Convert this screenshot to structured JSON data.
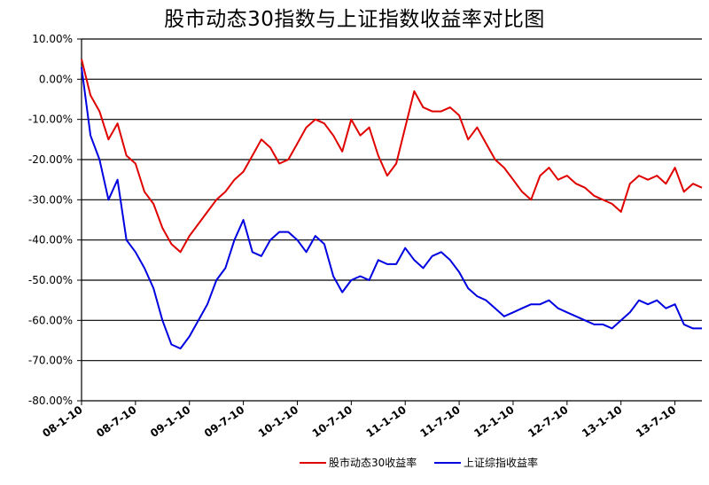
{
  "chart_data": {
    "type": "line",
    "title": "股市动态30指数与上证指数收益率对比图",
    "ylim": [
      -0.8,
      0.1
    ],
    "y_ticks": [
      "10.00%",
      "0.00%",
      "-10.00%",
      "-20.00%",
      "-30.00%",
      "-40.00%",
      "-50.00%",
      "-60.00%",
      "-70.00%",
      "-80.00%"
    ],
    "x_ticks": [
      "08-1-10",
      "08-7-10",
      "09-1-10",
      "09-7-10",
      "10-1-10",
      "10-7-10",
      "11-1-10",
      "11-7-10",
      "12-1-10",
      "12-7-10",
      "13-1-10",
      "13-7-10"
    ],
    "xlim": [
      "08-1-10",
      "13-10-10"
    ],
    "grid": true,
    "legend_position": "bottom",
    "series": [
      {
        "name": "股市动态30收益率",
        "color": "#e00000",
        "x": [
          "08-1-10",
          "08-2-10",
          "08-3-10",
          "08-4-10",
          "08-5-10",
          "08-6-10",
          "08-7-10",
          "08-8-10",
          "08-9-10",
          "08-10-10",
          "08-11-10",
          "08-12-10",
          "09-1-10",
          "09-2-10",
          "09-3-10",
          "09-4-10",
          "09-5-10",
          "09-6-10",
          "09-7-10",
          "09-8-10",
          "09-9-10",
          "09-10-10",
          "09-11-10",
          "09-12-10",
          "10-1-10",
          "10-2-10",
          "10-3-10",
          "10-4-10",
          "10-5-10",
          "10-6-10",
          "10-7-10",
          "10-8-10",
          "10-9-10",
          "10-10-10",
          "10-11-10",
          "10-12-10",
          "11-1-10",
          "11-2-10",
          "11-3-10",
          "11-4-10",
          "11-5-10",
          "11-6-10",
          "11-7-10",
          "11-8-10",
          "11-9-10",
          "11-10-10",
          "11-11-10",
          "11-12-10",
          "12-1-10",
          "12-2-10",
          "12-3-10",
          "12-4-10",
          "12-5-10",
          "12-6-10",
          "12-7-10",
          "12-8-10",
          "12-9-10",
          "12-10-10",
          "12-11-10",
          "12-12-10",
          "13-1-10",
          "13-2-10",
          "13-3-10",
          "13-4-10",
          "13-5-10",
          "13-6-10",
          "13-7-10",
          "13-8-10",
          "13-9-10",
          "13-10-10"
        ],
        "values": [
          0.05,
          -0.04,
          -0.08,
          -0.15,
          -0.11,
          -0.19,
          -0.21,
          -0.28,
          -0.31,
          -0.37,
          -0.41,
          -0.43,
          -0.39,
          -0.36,
          -0.33,
          -0.3,
          -0.28,
          -0.25,
          -0.23,
          -0.19,
          -0.15,
          -0.17,
          -0.21,
          -0.2,
          -0.16,
          -0.12,
          -0.1,
          -0.11,
          -0.14,
          -0.18,
          -0.1,
          -0.14,
          -0.12,
          -0.19,
          -0.24,
          -0.21,
          -0.12,
          -0.03,
          -0.07,
          -0.08,
          -0.08,
          -0.07,
          -0.09,
          -0.15,
          -0.12,
          -0.16,
          -0.2,
          -0.22,
          -0.25,
          -0.28,
          -0.3,
          -0.24,
          -0.22,
          -0.25,
          -0.24,
          -0.26,
          -0.27,
          -0.29,
          -0.3,
          -0.31,
          -0.33,
          -0.26,
          -0.24,
          -0.25,
          -0.24,
          -0.26,
          -0.22,
          -0.28,
          -0.26,
          -0.27
        ]
      },
      {
        "name": "上证综指收益率",
        "color": "#0000e0",
        "x": [
          "08-1-10",
          "08-2-10",
          "08-3-10",
          "08-4-10",
          "08-5-10",
          "08-6-10",
          "08-7-10",
          "08-8-10",
          "08-9-10",
          "08-10-10",
          "08-11-10",
          "08-12-10",
          "09-1-10",
          "09-2-10",
          "09-3-10",
          "09-4-10",
          "09-5-10",
          "09-6-10",
          "09-7-10",
          "09-8-10",
          "09-9-10",
          "09-10-10",
          "09-11-10",
          "09-12-10",
          "10-1-10",
          "10-2-10",
          "10-3-10",
          "10-4-10",
          "10-5-10",
          "10-6-10",
          "10-7-10",
          "10-8-10",
          "10-9-10",
          "10-10-10",
          "10-11-10",
          "10-12-10",
          "11-1-10",
          "11-2-10",
          "11-3-10",
          "11-4-10",
          "11-5-10",
          "11-6-10",
          "11-7-10",
          "11-8-10",
          "11-9-10",
          "11-10-10",
          "11-11-10",
          "11-12-10",
          "12-1-10",
          "12-2-10",
          "12-3-10",
          "12-4-10",
          "12-5-10",
          "12-6-10",
          "12-7-10",
          "12-8-10",
          "12-9-10",
          "12-10-10",
          "12-11-10",
          "12-12-10",
          "13-1-10",
          "13-2-10",
          "13-3-10",
          "13-4-10",
          "13-5-10",
          "13-6-10",
          "13-7-10",
          "13-8-10",
          "13-9-10",
          "13-10-10"
        ],
        "values": [
          0.03,
          -0.14,
          -0.2,
          -0.3,
          -0.25,
          -0.4,
          -0.43,
          -0.47,
          -0.52,
          -0.6,
          -0.66,
          -0.67,
          -0.64,
          -0.6,
          -0.56,
          -0.5,
          -0.47,
          -0.4,
          -0.35,
          -0.43,
          -0.44,
          -0.4,
          -0.38,
          -0.38,
          -0.4,
          -0.43,
          -0.39,
          -0.41,
          -0.49,
          -0.53,
          -0.5,
          -0.49,
          -0.5,
          -0.45,
          -0.46,
          -0.46,
          -0.42,
          -0.45,
          -0.47,
          -0.44,
          -0.43,
          -0.45,
          -0.48,
          -0.52,
          -0.54,
          -0.55,
          -0.57,
          -0.59,
          -0.58,
          -0.57,
          -0.56,
          -0.56,
          -0.55,
          -0.57,
          -0.58,
          -0.59,
          -0.6,
          -0.61,
          -0.61,
          -0.62,
          -0.6,
          -0.58,
          -0.55,
          -0.56,
          -0.55,
          -0.57,
          -0.56,
          -0.61,
          -0.62,
          -0.62
        ]
      }
    ]
  }
}
